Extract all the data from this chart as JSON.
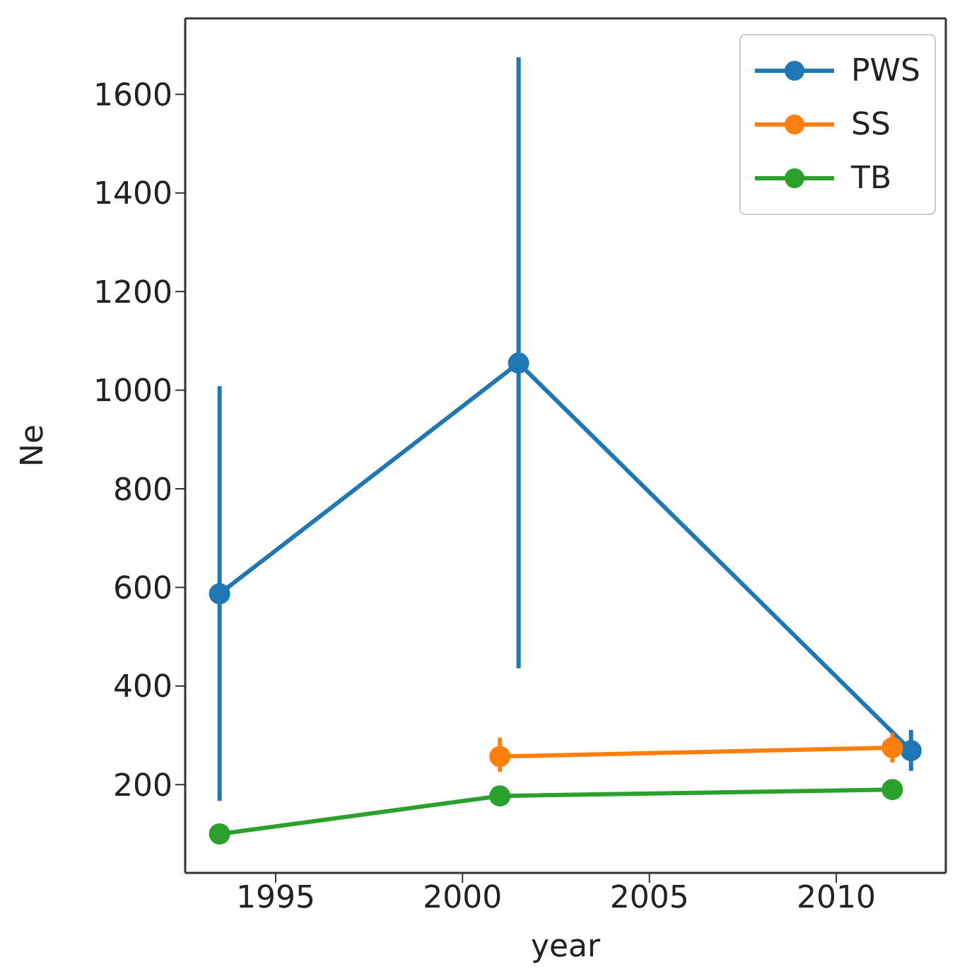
{
  "chart_data": {
    "type": "line",
    "xlabel": "year",
    "ylabel": "Ne",
    "series": [
      {
        "name": "PWS",
        "color": "#1f77b4",
        "x": [
          1993.5,
          2001.5,
          2012
        ],
        "values": [
          587,
          1055,
          269
        ],
        "errors": [
          [
            167,
            1008
          ],
          [
            436,
            1675
          ],
          [
            228,
            311
          ]
        ]
      },
      {
        "name": "SS",
        "color": "#ff7f0e",
        "x": [
          2001,
          2011.5
        ],
        "values": [
          257,
          275
        ],
        "errors": [
          [
            226,
            295
          ],
          [
            245,
            305
          ]
        ]
      },
      {
        "name": "TB",
        "color": "#2ca02c",
        "x": [
          1993.5,
          2001,
          2011.5
        ],
        "values": [
          100,
          177,
          190
        ]
      }
    ],
    "xlim": [
      1992.58,
      2012.93
    ],
    "ylim": [
      21,
      1754
    ],
    "xticks": [
      1995,
      2000,
      2005,
      2010
    ],
    "yticks": [
      200,
      400,
      600,
      800,
      1000,
      1200,
      1400,
      1600
    ],
    "legend": "top right",
    "marker": "circle",
    "line_style": "solid"
  }
}
